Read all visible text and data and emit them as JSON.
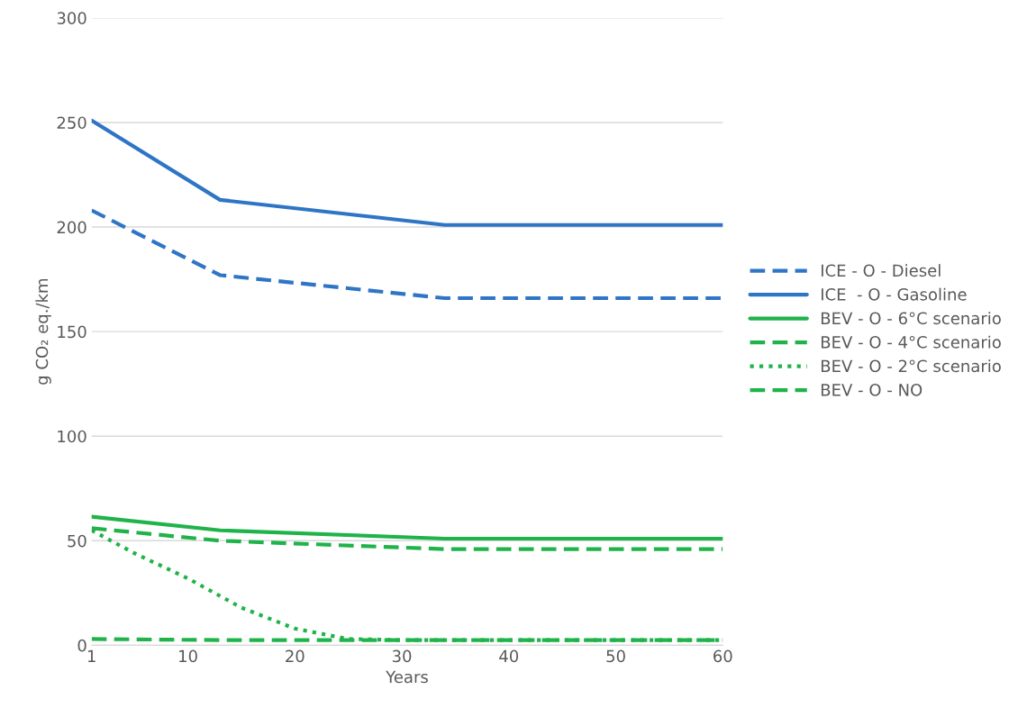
{
  "chart_data": {
    "type": "line",
    "xlabel": "Years",
    "ylabel": "g CO₂ eq./km",
    "xlim": [
      1,
      60
    ],
    "xticks": [
      1,
      10,
      20,
      30,
      40,
      50,
      60
    ],
    "ylim": [
      0,
      300
    ],
    "yticks": [
      0,
      50,
      100,
      150,
      200,
      250,
      300
    ],
    "grid": "y",
    "legend": "right",
    "marker": "none",
    "series": [
      {
        "name": "ICE - O - Diesel",
        "color": "#2f75c6",
        "line_style": "dashed",
        "x": [
          1,
          13,
          34,
          60
        ],
        "values": [
          208,
          177,
          166,
          166
        ]
      },
      {
        "name": "ICE  - O - Gasoline",
        "color": "#2f75c6",
        "line_style": "solid",
        "x": [
          1,
          13,
          34,
          60
        ],
        "values": [
          251,
          213,
          201,
          201
        ]
      },
      {
        "name": "BEV - O - 6°C scenario",
        "color": "#1fb34a",
        "line_style": "solid",
        "x": [
          1,
          13,
          34,
          60
        ],
        "values": [
          61.5,
          55,
          51,
          51
        ]
      },
      {
        "name": "BEV - O - 4°C scenario",
        "color": "#1fb34a",
        "line_style": "dashed",
        "x": [
          1,
          13,
          34,
          60
        ],
        "values": [
          56,
          50,
          46,
          46
        ]
      },
      {
        "name": "BEV - O - 2°C scenario",
        "color": "#1fb34a",
        "line_style": "dotted",
        "x": [
          1,
          5,
          10,
          15,
          20,
          25,
          30,
          34,
          60
        ],
        "values": [
          55,
          44,
          32,
          18,
          8,
          3,
          2.5,
          2.5,
          2.5
        ]
      },
      {
        "name": "BEV - O - NO",
        "color": "#1fb34a",
        "line_style": "dashed",
        "x": [
          1,
          13,
          34,
          60
        ],
        "values": [
          3,
          2.5,
          2.5,
          2.5
        ]
      }
    ]
  }
}
